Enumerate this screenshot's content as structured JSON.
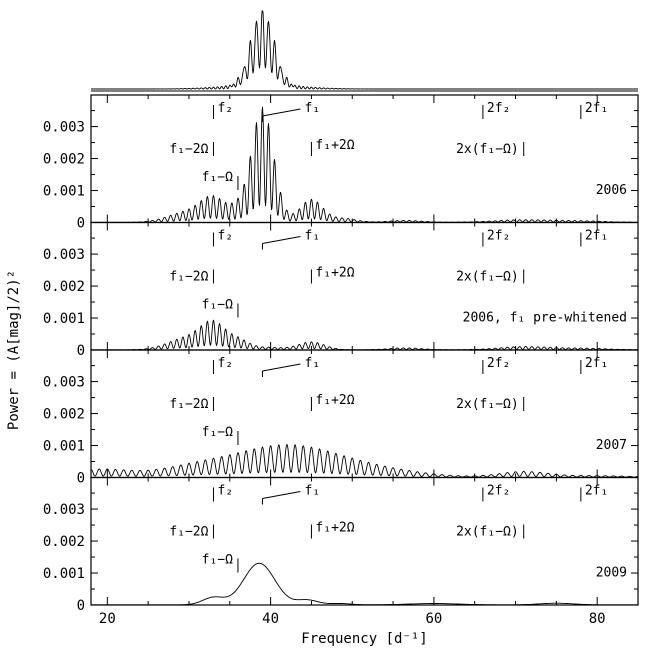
{
  "chart_data": {
    "type": "line",
    "xlabel": "Frequency [d⁻¹]",
    "ylabel": "Power = (A[mag]/2)²",
    "xlim": [
      18,
      85
    ],
    "x_ticks": [
      "20",
      "40",
      "60",
      "80"
    ],
    "x_tick_values": [
      20,
      40,
      60,
      80
    ],
    "ylim": [
      0,
      0.0038
    ],
    "y_ticks": [
      "0",
      "0.001",
      "0.002",
      "0.003"
    ],
    "y_tick_values": [
      0,
      0.001,
      0.002,
      0.003
    ],
    "grid": false,
    "window": {
      "description": "spectral window (top strip, no y axis)",
      "center": 39.0,
      "peak": 1.0,
      "alias_spacing": 0.75,
      "envelope_width": 1.4
    },
    "labels": [
      {
        "id": "f2",
        "x": 33.0,
        "text": "f₂",
        "row": 1
      },
      {
        "id": "f1",
        "x": 39.0,
        "text": "f₁",
        "row": 1
      },
      {
        "id": "2f2",
        "x": 66.0,
        "text": "2f₂",
        "row": 1
      },
      {
        "id": "2f1",
        "x": 78.0,
        "text": "2f₁",
        "row": 1
      },
      {
        "id": "f1-2O",
        "x": 33.0,
        "text": "f₁−2Ω",
        "row": 2
      },
      {
        "id": "f1+2O",
        "x": 45.0,
        "text": "f₁+2Ω",
        "row": 2
      },
      {
        "id": "2x",
        "x": 71.0,
        "text": "2x(f₁−Ω)",
        "row": 2
      },
      {
        "id": "f1-O",
        "x": 36.0,
        "text": "f₁−Ω",
        "row": 3
      }
    ],
    "panels": [
      {
        "name": "2006",
        "peaks": [
          {
            "x": 29.5,
            "y": 0.0003,
            "w": 2.2
          },
          {
            "x": 33.0,
            "y": 0.00075,
            "w": 1.6
          },
          {
            "x": 36.0,
            "y": 0.00032,
            "w": 1.0
          },
          {
            "x": 39.0,
            "y": 0.0036,
            "w": 1.35
          },
          {
            "x": 45.0,
            "y": 0.00072,
            "w": 1.4
          },
          {
            "x": 49.0,
            "y": 0.00012,
            "w": 1.5
          },
          {
            "x": 56.5,
            "y": 6e-05,
            "w": 2.0
          },
          {
            "x": 71.0,
            "y": 8e-05,
            "w": 3.5
          },
          {
            "x": 78.0,
            "y": 4e-05,
            "w": 3.0
          }
        ],
        "alias_spacing": 0.75
      },
      {
        "name": "2006, f₁ pre-whitened",
        "peaks": [
          {
            "x": 29.5,
            "y": 0.00035,
            "w": 2.2
          },
          {
            "x": 33.0,
            "y": 0.00082,
            "w": 1.6
          },
          {
            "x": 36.2,
            "y": 0.00025,
            "w": 1.2
          },
          {
            "x": 39.5,
            "y": 8e-05,
            "w": 2.0
          },
          {
            "x": 45.0,
            "y": 0.00025,
            "w": 1.6
          },
          {
            "x": 56.5,
            "y": 6e-05,
            "w": 2.0
          },
          {
            "x": 71.0,
            "y": 0.0001,
            "w": 3.0
          },
          {
            "x": 78.0,
            "y": 5e-05,
            "w": 3.0
          }
        ],
        "alias_spacing": 0.75
      },
      {
        "name": "2007",
        "peaks": [
          {
            "x": 19.0,
            "y": 0.00025,
            "w": 4.0
          },
          {
            "x": 30.0,
            "y": 0.0002,
            "w": 4.0
          },
          {
            "x": 42.0,
            "y": 0.00102,
            "w": 7.0
          },
          {
            "x": 55.0,
            "y": 0.00012,
            "w": 5.0
          },
          {
            "x": 71.0,
            "y": 0.00018,
            "w": 3.0
          },
          {
            "x": 80.0,
            "y": 5e-05,
            "w": 4.0
          }
        ],
        "alias_spacing": 1.0
      },
      {
        "name": "2009",
        "peaks": [
          {
            "x": 33.0,
            "y": 0.00023,
            "w": 1.3
          },
          {
            "x": 38.6,
            "y": 0.0013,
            "w": 1.9
          },
          {
            "x": 44.5,
            "y": 0.00015,
            "w": 1.3
          },
          {
            "x": 48.5,
            "y": 4e-05,
            "w": 1.3
          },
          {
            "x": 60.0,
            "y": 4e-05,
            "w": 3.0
          },
          {
            "x": 75.0,
            "y": 5e-05,
            "w": 2.0
          }
        ],
        "alias_spacing": 0
      }
    ]
  }
}
